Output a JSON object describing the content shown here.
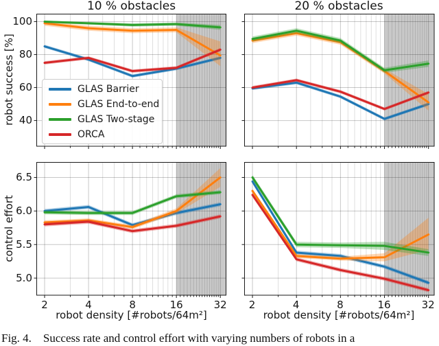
{
  "figure": {
    "caption": "Fig. 4.    Success rate and control effort with varying numbers of robots in a",
    "xlabel": "robot density [#robots/64m²]",
    "ylabel_top": "robot success [%]",
    "ylabel_bottom": "control effort"
  },
  "legend": {
    "entries": [
      {
        "label": "GLAS Barrier",
        "color": "#1f77b4"
      },
      {
        "label": "GLAS End-to-end",
        "color": "#ff7f0e"
      },
      {
        "label": "GLAS Two-stage",
        "color": "#2ca02c"
      },
      {
        "label": "ORCA",
        "color": "#d62728"
      }
    ]
  },
  "colors": {
    "blue": "#1f77b4",
    "orange": "#ff7f0e",
    "green": "#2ca02c",
    "red": "#d62728",
    "shade": "#c9c9c9",
    "spine": "#1a1a1a"
  },
  "chart_data": [
    {
      "type": "line",
      "title": "10 % obstacles",
      "xscale": "log2",
      "x": [
        2,
        4,
        8,
        16,
        32
      ],
      "xlim": [
        1.756,
        35.2
      ],
      "ylabel": "robot success [%]",
      "ylim": [
        24.2,
        104.8
      ],
      "yticks": [
        40,
        60,
        80,
        100
      ],
      "shade_from": 16,
      "grid": true,
      "series": [
        {
          "name": "GLAS Barrier",
          "color": "#1f77b4",
          "values": [
            85,
            77,
            67,
            71.5,
            78
          ],
          "lo": [
            84,
            76,
            66,
            70.5,
            77
          ],
          "hi": [
            86,
            78,
            68,
            72.5,
            79
          ]
        },
        {
          "name": "GLAS End-to-end",
          "color": "#ff7f0e",
          "values": [
            99,
            96,
            94.5,
            95,
            79.5
          ],
          "lo": [
            97.5,
            94.5,
            93,
            93.5,
            73
          ],
          "hi": [
            100,
            97.5,
            96,
            96.5,
            88
          ]
        },
        {
          "name": "GLAS Two-stage",
          "color": "#2ca02c",
          "values": [
            100,
            99,
            98,
            98.5,
            96.5
          ],
          "lo": [
            99.2,
            98.2,
            97,
            97.5,
            95
          ],
          "hi": [
            100.6,
            99.8,
            99,
            99.5,
            98
          ]
        },
        {
          "name": "ORCA",
          "color": "#d62728",
          "values": [
            75,
            78,
            70,
            72,
            83
          ],
          "lo": [
            74,
            77,
            69,
            71,
            82
          ],
          "hi": [
            76,
            79,
            71,
            73,
            84
          ]
        }
      ]
    },
    {
      "type": "line",
      "title": "20 % obstacles",
      "xscale": "log2",
      "x": [
        2,
        4,
        8,
        16,
        32
      ],
      "xlim": [
        1.756,
        35.2
      ],
      "ylim": [
        24.2,
        104.8
      ],
      "yticks": [
        40,
        60,
        80,
        100
      ],
      "shade_from": 16,
      "grid": true,
      "series": [
        {
          "name": "GLAS Barrier",
          "color": "#1f77b4",
          "values": [
            59.5,
            63,
            54.5,
            41,
            50
          ],
          "lo": [
            58.5,
            62,
            53.5,
            40,
            49
          ],
          "hi": [
            60.5,
            64,
            55.5,
            42,
            51
          ]
        },
        {
          "name": "GLAS End-to-end",
          "color": "#ff7f0e",
          "values": [
            88.5,
            93,
            87.5,
            70,
            51
          ],
          "lo": [
            87,
            91.5,
            86,
            68.5,
            46
          ],
          "hi": [
            90,
            94.5,
            89,
            71.5,
            56
          ]
        },
        {
          "name": "GLAS Two-stage",
          "color": "#2ca02c",
          "values": [
            89.5,
            94.5,
            88.5,
            70.5,
            74.5
          ],
          "lo": [
            88,
            93,
            87,
            69,
            72.5
          ],
          "hi": [
            91,
            96,
            90,
            72,
            76.5
          ]
        },
        {
          "name": "ORCA",
          "color": "#d62728",
          "values": [
            60,
            64.5,
            57.5,
            47,
            57
          ],
          "lo": [
            59,
            63.5,
            56.5,
            46,
            56
          ],
          "hi": [
            61,
            65.5,
            58.5,
            48,
            58
          ]
        }
      ]
    },
    {
      "type": "line",
      "title": null,
      "xscale": "log2",
      "x": [
        2,
        4,
        8,
        16,
        32
      ],
      "xlim": [
        1.756,
        35.2
      ],
      "xlabel": "robot density [#robots/64m²]",
      "ylabel": "control effort",
      "ylim": [
        4.74,
        6.73
      ],
      "yticks": [
        5.0,
        5.5,
        6.0,
        6.5
      ],
      "shade_from": 16,
      "grid": true,
      "series": [
        {
          "name": "GLAS Barrier",
          "color": "#1f77b4",
          "values": [
            6.0,
            6.06,
            5.79,
            5.97,
            6.1
          ],
          "lo": [
            5.97,
            6.03,
            5.76,
            5.94,
            6.07
          ],
          "hi": [
            6.03,
            6.09,
            5.82,
            6.0,
            6.13
          ]
        },
        {
          "name": "GLAS End-to-end",
          "color": "#ff7f0e",
          "values": [
            5.83,
            5.86,
            5.76,
            6.0,
            6.5
          ],
          "lo": [
            5.8,
            5.83,
            5.73,
            5.96,
            6.36
          ],
          "hi": [
            5.86,
            5.89,
            5.79,
            6.04,
            6.64
          ]
        },
        {
          "name": "GLAS Two-stage",
          "color": "#2ca02c",
          "values": [
            5.98,
            5.97,
            5.97,
            6.22,
            6.28
          ],
          "lo": [
            5.95,
            5.94,
            5.94,
            6.19,
            6.25
          ],
          "hi": [
            6.01,
            6.0,
            6.0,
            6.25,
            6.31
          ]
        },
        {
          "name": "ORCA",
          "color": "#d62728",
          "values": [
            5.8,
            5.84,
            5.7,
            5.78,
            5.92
          ],
          "lo": [
            5.77,
            5.81,
            5.67,
            5.75,
            5.89
          ],
          "hi": [
            5.83,
            5.87,
            5.73,
            5.81,
            5.95
          ]
        }
      ]
    },
    {
      "type": "line",
      "title": null,
      "xscale": "log2",
      "x": [
        2,
        4,
        8,
        16,
        32
      ],
      "xlim": [
        1.756,
        35.2
      ],
      "xlabel": "robot density [#robots/64m²]",
      "ylim": [
        4.74,
        6.73
      ],
      "yticks": [
        5.0,
        5.5,
        6.0,
        6.5
      ],
      "shade_from": 16,
      "grid": true,
      "series": [
        {
          "name": "GLAS Barrier",
          "color": "#1f77b4",
          "values": [
            6.44,
            5.38,
            5.33,
            5.17,
            4.93
          ],
          "lo": [
            6.41,
            5.35,
            5.3,
            5.14,
            4.9
          ],
          "hi": [
            6.47,
            5.41,
            5.36,
            5.2,
            4.96
          ]
        },
        {
          "name": "GLAS End-to-end",
          "color": "#ff7f0e",
          "values": [
            6.3,
            5.33,
            5.29,
            5.31,
            5.65
          ],
          "lo": [
            6.27,
            5.3,
            5.26,
            5.25,
            5.42
          ],
          "hi": [
            6.33,
            5.36,
            5.32,
            5.37,
            5.9
          ]
        },
        {
          "name": "GLAS Two-stage",
          "color": "#2ca02c",
          "values": [
            6.5,
            5.5,
            5.49,
            5.48,
            5.38
          ],
          "lo": [
            6.46,
            5.46,
            5.45,
            5.42,
            5.33
          ],
          "hi": [
            6.54,
            5.54,
            5.53,
            5.54,
            5.43
          ]
        },
        {
          "name": "ORCA",
          "color": "#d62728",
          "values": [
            6.24,
            5.28,
            5.12,
            4.99,
            4.82
          ],
          "lo": [
            6.21,
            5.25,
            5.09,
            4.96,
            4.79
          ],
          "hi": [
            6.27,
            5.31,
            5.15,
            5.02,
            4.85
          ]
        }
      ]
    }
  ]
}
